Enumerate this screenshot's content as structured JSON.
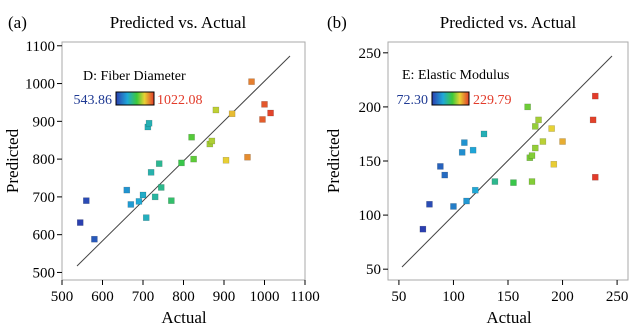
{
  "figure": {
    "panels": [
      {
        "panel_label": "(a)",
        "legend_title": "D: Fiber Diameter"
      },
      {
        "panel_label": "(b)",
        "legend_title": "E: Elastic Modulus"
      }
    ]
  },
  "chart_data": [
    {
      "type": "scatter",
      "title": "Predicted vs. Actual",
      "xlabel": "Actual",
      "ylabel": "Predicted",
      "xlim": [
        500,
        1100
      ],
      "ylim": [
        480,
        1110
      ],
      "xticks": [
        500,
        600,
        700,
        800,
        900,
        1000,
        1100
      ],
      "yticks": [
        500,
        600,
        700,
        800,
        900,
        1000,
        1100
      ],
      "grid": false,
      "reference_line": [
        [
          500,
          500
        ],
        [
          1100,
          1100
        ]
      ],
      "colorbar": {
        "min_label": "543.86",
        "max_label": "1022.08",
        "min": 543.86,
        "max": 1022.08,
        "min_color": "#1f3a93",
        "max_color": "#e23b2a"
      },
      "series": [
        {
          "points": [
            [
              545,
              632
            ],
            [
              560,
              690
            ],
            [
              580,
              588
            ],
            [
              660,
              718
            ],
            [
              670,
              680
            ],
            [
              690,
              688
            ],
            [
              700,
              705
            ],
            [
              708,
              645
            ],
            [
              712,
              885
            ],
            [
              715,
              895
            ],
            [
              720,
              765
            ],
            [
              730,
              700
            ],
            [
              740,
              788
            ],
            [
              745,
              725
            ],
            [
              770,
              690
            ],
            [
              795,
              790
            ],
            [
              820,
              858
            ],
            [
              825,
              800
            ],
            [
              865,
              840
            ],
            [
              870,
              848
            ],
            [
              880,
              930
            ],
            [
              905,
              797
            ],
            [
              920,
              920
            ],
            [
              958,
              805
            ],
            [
              968,
              1005
            ],
            [
              995,
              905
            ],
            [
              1000,
              945
            ],
            [
              1015,
              922
            ]
          ]
        }
      ]
    },
    {
      "type": "scatter",
      "title": "Predicted vs. Actual",
      "xlabel": "Actual",
      "ylabel": "Predicted",
      "xlim": [
        40,
        260
      ],
      "ylim": [
        40,
        260
      ],
      "xticks": [
        50,
        100,
        150,
        200,
        250
      ],
      "yticks": [
        50,
        100,
        150,
        200,
        250
      ],
      "grid": false,
      "reference_line": [
        [
          50,
          50
        ],
        [
          250,
          250
        ]
      ],
      "colorbar": {
        "min_label": "72.30",
        "max_label": "229.79",
        "min": 72.3,
        "max": 229.79,
        "min_color": "#1f3a93",
        "max_color": "#e23b2a"
      },
      "series": [
        {
          "points": [
            [
              72,
              87
            ],
            [
              78,
              110
            ],
            [
              88,
              145
            ],
            [
              92,
              137
            ],
            [
              100,
              108
            ],
            [
              108,
              158
            ],
            [
              110,
              167
            ],
            [
              112,
              113
            ],
            [
              118,
              160
            ],
            [
              120,
              123
            ],
            [
              128,
              175
            ],
            [
              138,
              131
            ],
            [
              155,
              130
            ],
            [
              168,
              200
            ],
            [
              170,
              153
            ],
            [
              172,
              155
            ],
            [
              172,
              131
            ],
            [
              175,
              162
            ],
            [
              175,
              182
            ],
            [
              178,
              188
            ],
            [
              182,
              168
            ],
            [
              190,
              180
            ],
            [
              192,
              147
            ],
            [
              200,
              168
            ],
            [
              228,
              188
            ],
            [
              230,
              210
            ],
            [
              230,
              135
            ]
          ]
        }
      ]
    }
  ]
}
